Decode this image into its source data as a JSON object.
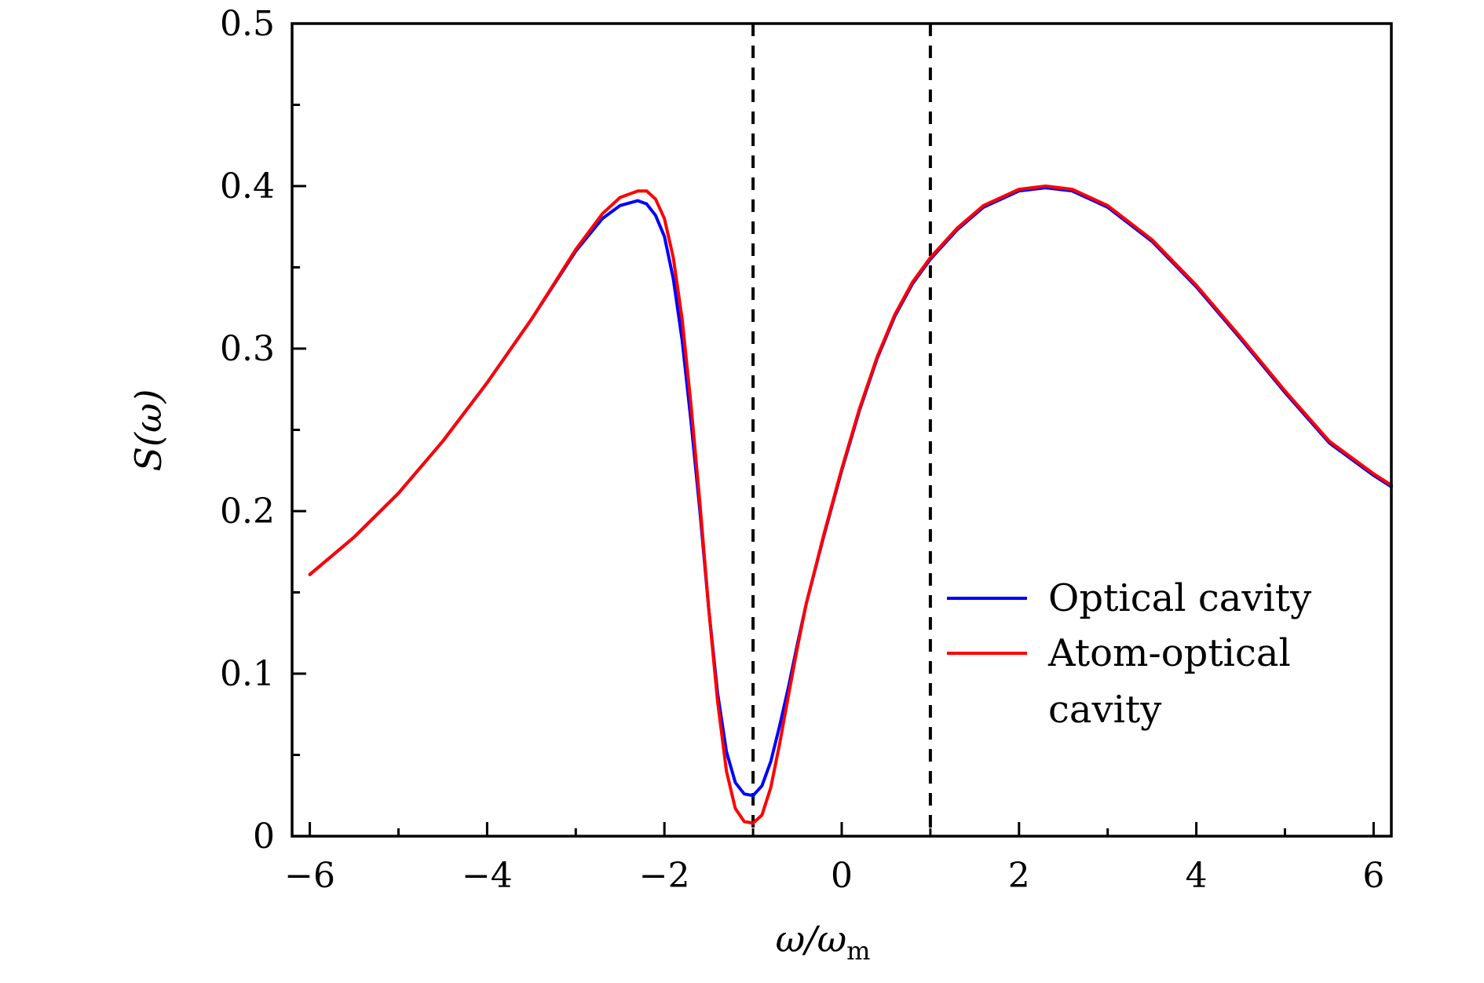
{
  "chart_data": {
    "type": "line",
    "title": "",
    "xlabel": "ω/ω",
    "xlabel_sub": "m",
    "ylabel": "S(ω)",
    "xlim": [
      -6.2,
      6.2
    ],
    "ylim": [
      0,
      0.5
    ],
    "x_ticks": [
      -6,
      -4,
      -2,
      0,
      2,
      4,
      6
    ],
    "x_tick_labels": [
      "−6",
      "−4",
      "−2",
      "0",
      "2",
      "4",
      "6"
    ],
    "y_ticks": [
      0,
      0.1,
      0.2,
      0.3,
      0.4,
      0.5
    ],
    "y_tick_labels": [
      "0",
      "0.1",
      "0.2",
      "0.3",
      "0.4",
      "0.5"
    ],
    "grid": false,
    "vlines": [
      -1,
      1
    ],
    "legend_position": "lower-right",
    "legend_lines": [
      [
        "Optical cavity"
      ],
      [
        "Atom-optical",
        "cavity"
      ]
    ],
    "series": [
      {
        "name": "Optical cavity",
        "color": "#0000ff",
        "x": [
          -6.0,
          -5.5,
          -5.0,
          -4.5,
          -4.0,
          -3.5,
          -3.0,
          -2.7,
          -2.5,
          -2.3,
          -2.2,
          -2.1,
          -2.0,
          -1.9,
          -1.8,
          -1.7,
          -1.6,
          -1.5,
          -1.4,
          -1.3,
          -1.2,
          -1.1,
          -1.0,
          -0.9,
          -0.8,
          -0.7,
          -0.6,
          -0.5,
          -0.4,
          -0.2,
          0.0,
          0.2,
          0.4,
          0.6,
          0.8,
          1.0,
          1.3,
          1.6,
          2.0,
          2.3,
          2.6,
          3.0,
          3.5,
          4.0,
          4.5,
          5.0,
          5.5,
          6.0,
          6.2
        ],
        "y": [
          0.161,
          0.184,
          0.211,
          0.243,
          0.279,
          0.318,
          0.36,
          0.38,
          0.388,
          0.391,
          0.389,
          0.382,
          0.369,
          0.343,
          0.305,
          0.255,
          0.2,
          0.14,
          0.088,
          0.052,
          0.033,
          0.026,
          0.025,
          0.031,
          0.046,
          0.068,
          0.092,
          0.118,
          0.143,
          0.185,
          0.225,
          0.262,
          0.294,
          0.32,
          0.34,
          0.355,
          0.373,
          0.387,
          0.397,
          0.399,
          0.397,
          0.387,
          0.366,
          0.338,
          0.306,
          0.273,
          0.242,
          0.222,
          0.215
        ]
      },
      {
        "name": "Atom-optical cavity",
        "color": "#ff0000",
        "x": [
          -6.0,
          -5.5,
          -5.0,
          -4.5,
          -4.0,
          -3.5,
          -3.0,
          -2.7,
          -2.5,
          -2.3,
          -2.2,
          -2.1,
          -2.0,
          -1.9,
          -1.8,
          -1.7,
          -1.6,
          -1.5,
          -1.4,
          -1.3,
          -1.2,
          -1.1,
          -1.0,
          -0.9,
          -0.8,
          -0.7,
          -0.6,
          -0.5,
          -0.4,
          -0.2,
          0.0,
          0.2,
          0.4,
          0.6,
          0.8,
          1.0,
          1.3,
          1.6,
          2.0,
          2.3,
          2.6,
          3.0,
          3.5,
          4.0,
          4.5,
          5.0,
          5.5,
          6.0,
          6.2
        ],
        "y": [
          0.161,
          0.184,
          0.211,
          0.243,
          0.279,
          0.318,
          0.361,
          0.383,
          0.393,
          0.397,
          0.397,
          0.392,
          0.38,
          0.356,
          0.318,
          0.265,
          0.205,
          0.14,
          0.083,
          0.04,
          0.017,
          0.009,
          0.008,
          0.013,
          0.03,
          0.057,
          0.087,
          0.116,
          0.143,
          0.186,
          0.226,
          0.263,
          0.295,
          0.321,
          0.341,
          0.356,
          0.374,
          0.388,
          0.398,
          0.4,
          0.398,
          0.388,
          0.367,
          0.339,
          0.307,
          0.274,
          0.243,
          0.223,
          0.216
        ]
      }
    ]
  }
}
